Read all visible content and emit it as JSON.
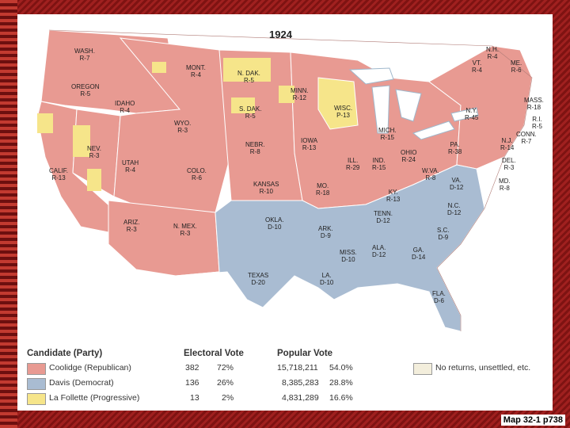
{
  "map": {
    "title": "1924",
    "colors": {
      "republican": "#e89a92",
      "democrat": "#a9bcd2",
      "progressive": "#f6e58a",
      "no_returns": "#f3eedc",
      "water": "#ffffff"
    },
    "states": [
      {
        "name": "WASH.",
        "result": "R-7",
        "winner": "republican"
      },
      {
        "name": "OREGON",
        "result": "R-5",
        "winner": "republican"
      },
      {
        "name": "CALIF.",
        "result": "R-13",
        "winner": "republican"
      },
      {
        "name": "NEV.",
        "result": "R-3",
        "winner": "republican"
      },
      {
        "name": "IDAHO",
        "result": "R-4",
        "winner": "republican"
      },
      {
        "name": "MONT.",
        "result": "R-4",
        "winner": "republican"
      },
      {
        "name": "WYO.",
        "result": "R-3",
        "winner": "republican"
      },
      {
        "name": "UTAH",
        "result": "R-4",
        "winner": "republican"
      },
      {
        "name": "COLO.",
        "result": "R-6",
        "winner": "republican"
      },
      {
        "name": "ARIZ.",
        "result": "R-3",
        "winner": "republican"
      },
      {
        "name": "N. MEX.",
        "result": "R-3",
        "winner": "republican"
      },
      {
        "name": "N. DAK.",
        "result": "R-5",
        "winner": "republican"
      },
      {
        "name": "S. DAK.",
        "result": "R-5",
        "winner": "republican"
      },
      {
        "name": "NEBR.",
        "result": "R-8",
        "winner": "republican"
      },
      {
        "name": "KANSAS",
        "result": "R-10",
        "winner": "republican"
      },
      {
        "name": "OKLA.",
        "result": "D-10",
        "winner": "democrat"
      },
      {
        "name": "TEXAS",
        "result": "D-20",
        "winner": "democrat"
      },
      {
        "name": "MINN.",
        "result": "R-12",
        "winner": "republican"
      },
      {
        "name": "IOWA",
        "result": "R-13",
        "winner": "republican"
      },
      {
        "name": "MO.",
        "result": "R-18",
        "winner": "republican"
      },
      {
        "name": "ARK.",
        "result": "D-9",
        "winner": "democrat"
      },
      {
        "name": "LA.",
        "result": "D-10",
        "winner": "democrat"
      },
      {
        "name": "WISC.",
        "result": "P-13",
        "winner": "progressive"
      },
      {
        "name": "ILL.",
        "result": "R-29",
        "winner": "republican"
      },
      {
        "name": "MICH.",
        "result": "R-15",
        "winner": "republican"
      },
      {
        "name": "IND.",
        "result": "R-15",
        "winner": "republican"
      },
      {
        "name": "OHIO",
        "result": "R-24",
        "winner": "republican"
      },
      {
        "name": "KY.",
        "result": "R-13",
        "winner": "republican"
      },
      {
        "name": "TENN.",
        "result": "D-12",
        "winner": "democrat"
      },
      {
        "name": "MISS.",
        "result": "D-10",
        "winner": "democrat"
      },
      {
        "name": "ALA.",
        "result": "D-12",
        "winner": "democrat"
      },
      {
        "name": "GA.",
        "result": "D-14",
        "winner": "democrat"
      },
      {
        "name": "FLA.",
        "result": "D-6",
        "winner": "democrat"
      },
      {
        "name": "S.C.",
        "result": "D-9",
        "winner": "democrat"
      },
      {
        "name": "N.C.",
        "result": "D-12",
        "winner": "democrat"
      },
      {
        "name": "VA.",
        "result": "D-12",
        "winner": "democrat"
      },
      {
        "name": "W.VA.",
        "result": "R-8",
        "winner": "republican"
      },
      {
        "name": "PA.",
        "result": "R-38",
        "winner": "republican"
      },
      {
        "name": "N.Y.",
        "result": "R-45",
        "winner": "republican"
      },
      {
        "name": "VT.",
        "result": "R-4",
        "winner": "republican"
      },
      {
        "name": "N.H.",
        "result": "R-4",
        "winner": "republican"
      },
      {
        "name": "ME.",
        "result": "R-6",
        "winner": "republican"
      },
      {
        "name": "MASS.",
        "result": "R-18",
        "winner": "republican"
      },
      {
        "name": "R.I.",
        "result": "R-5",
        "winner": "republican"
      },
      {
        "name": "CONN.",
        "result": "R-7",
        "winner": "republican"
      },
      {
        "name": "N.J.",
        "result": "R-14",
        "winner": "republican"
      },
      {
        "name": "DEL.",
        "result": "R-3",
        "winner": "republican"
      },
      {
        "name": "MD.",
        "result": "R-8",
        "winner": "republican"
      }
    ]
  },
  "legend": {
    "headers": {
      "candidate": "Candidate (Party)",
      "electoral": "Electoral Vote",
      "popular": "Popular Vote"
    },
    "rows": [
      {
        "candidate": "Coolidge (Republican)",
        "ev": "382",
        "ev_pct": "72%",
        "pv": "15,718,211",
        "pv_pct": "54.0%",
        "color_key": "republican"
      },
      {
        "candidate": "Davis (Democrat)",
        "ev": "136",
        "ev_pct": "26%",
        "pv": "8,385,283",
        "pv_pct": "28.8%",
        "color_key": "democrat"
      },
      {
        "candidate": "La Follette (Progressive)",
        "ev": "13",
        "ev_pct": "2%",
        "pv": "4,831,289",
        "pv_pct": "16.6%",
        "color_key": "progressive"
      }
    ],
    "other": "No returns, unsettled, etc."
  },
  "caption": "Map 32-1 p738"
}
